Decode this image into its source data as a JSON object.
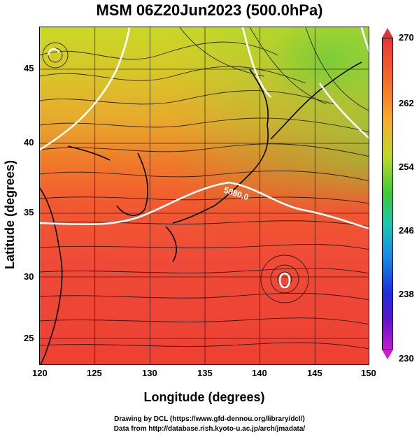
{
  "title": "MSM 06Z20Jun2023 (500.0hPa)",
  "map": {
    "lon_range": [
      120,
      150
    ],
    "lat_range": [
      23,
      48
    ],
    "x_ticks": [
      "120",
      "125",
      "130",
      "135",
      "140",
      "145",
      "150"
    ],
    "y_ticks": [
      "25",
      "30",
      "35",
      "40",
      "45"
    ],
    "xlabel": "Longitude (degrees)",
    "ylabel": "Latitude  (degrees)",
    "contour_label": "5880.0",
    "grid": true
  },
  "colorbar": {
    "labels": [
      "270",
      "262",
      "254",
      "246",
      "238",
      "230"
    ],
    "top_color": "#e4323a",
    "bottom_color": "#cc1ccf"
  },
  "credits": {
    "line1": "Drawing by DCL (https://www.gfd-dennou.org/library/dcl/)",
    "line2": "Data from http://database.rish.kyoto-u.ac.jp/arch/jmadata/"
  }
}
